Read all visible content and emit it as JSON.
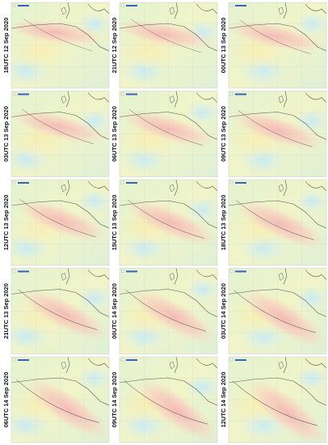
{
  "panels": [
    {
      "label": "18UTC 12 Sep 2020"
    },
    {
      "label": "21UTC 12 Sep 2020"
    },
    {
      "label": "00UTC 13 Sep 2020"
    },
    {
      "label": "03UTC 13 Sep 2020"
    },
    {
      "label": "06UTC 13 Sep 2020"
    },
    {
      "label": "09UTC 13 Sep 2020"
    },
    {
      "label": "12UTC 13 Sep 2020"
    },
    {
      "label": "15UTC 13 Sep 2020"
    },
    {
      "label": "18UTC 13 Sep 2020"
    },
    {
      "label": "21UTC 13 Sep 2020"
    },
    {
      "label": "00UTC 14 Sep 2020"
    },
    {
      "label": "03UTC 14 Sep 2020"
    },
    {
      "label": "06UTC 14 Sep 2020"
    },
    {
      "label": "09UTC 14 Sep 2020"
    },
    {
      "label": "12UTC 14 Sep 2020"
    }
  ]
}
